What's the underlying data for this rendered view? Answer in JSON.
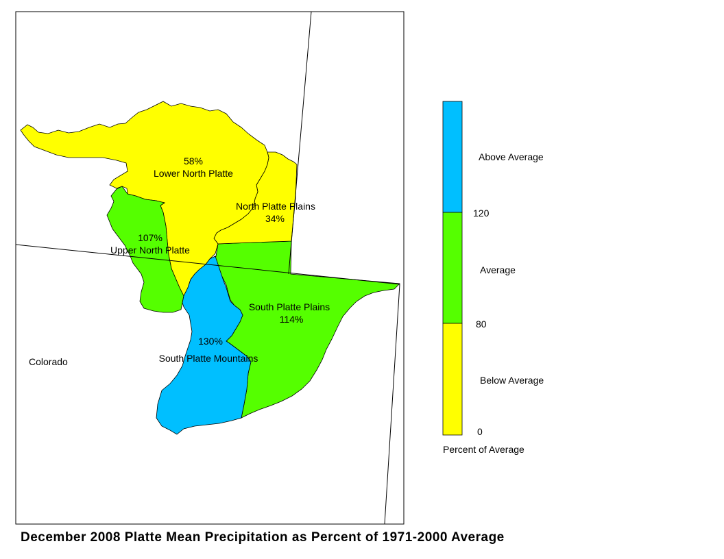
{
  "map": {
    "state_label": "Colorado",
    "title": "December 2008 Platte Mean Precipitation as Percent of 1971-2000 Average",
    "regions": [
      {
        "name": "Lower North Platte",
        "percent": "58%",
        "class": "Below Average",
        "color": "#ffff00"
      },
      {
        "name": "North Platte Plains",
        "percent": "34%",
        "class": "Below Average",
        "color": "#ffff00"
      },
      {
        "name": "Upper North Platte",
        "percent": "107%",
        "class": "Average",
        "color": "#55ff00"
      },
      {
        "name": "South Platte Plains",
        "percent": "114%",
        "class": "Average",
        "color": "#55ff00"
      },
      {
        "name": "South Platte Mountains",
        "percent": "130%",
        "class": "Above Average",
        "color": "#00bfff"
      }
    ]
  },
  "legend": {
    "title": "Percent of Average",
    "classes": [
      {
        "label": "Above Average",
        "color": "#00bfff",
        "min": 120,
        "max": null
      },
      {
        "label": "Average",
        "color": "#55ff00",
        "min": 80,
        "max": 120
      },
      {
        "label": "Below Average",
        "color": "#ffff00",
        "min": 0,
        "max": 80
      }
    ],
    "breaks": [
      "120",
      "80",
      "0"
    ]
  }
}
